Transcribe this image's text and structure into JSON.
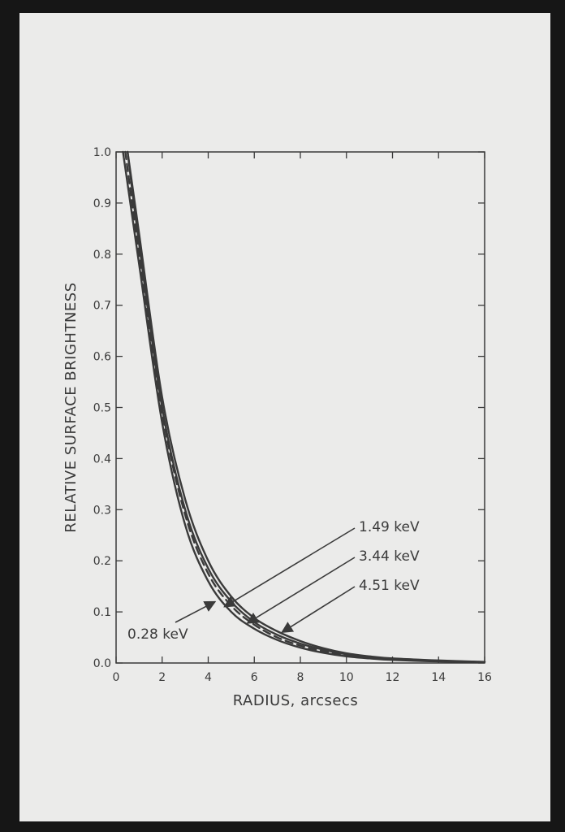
{
  "colors": {
    "background": "#ebebea",
    "ink": "#3a3a3a",
    "frame": "#161616"
  },
  "chart_data": {
    "type": "line",
    "title": "",
    "xlabel": "RADIUS, arcsecs",
    "ylabel": "RELATIVE SURFACE BRIGHTNESS",
    "xlim": [
      0,
      16
    ],
    "ylim": [
      0,
      1.0
    ],
    "xticks": [
      "0",
      "2",
      "4",
      "6",
      "8",
      "10",
      "12",
      "14",
      "16"
    ],
    "yticks": [
      "0.0",
      "0.1",
      "0.2",
      "0.3",
      "0.4",
      "0.5",
      "0.6",
      "0.7",
      "0.8",
      "0.9",
      "1.0"
    ],
    "grid": false,
    "series": [
      {
        "name": "0.28 keV",
        "dashed": false,
        "x": [
          0.3,
          1,
          2,
          3,
          4,
          5,
          6,
          7,
          8,
          9,
          10,
          11,
          12,
          14,
          16
        ],
        "y": [
          1.0,
          0.78,
          0.47,
          0.27,
          0.16,
          0.1,
          0.067,
          0.045,
          0.03,
          0.02,
          0.013,
          0.009,
          0.006,
          0.003,
          0.002
        ]
      },
      {
        "name": "1.49 keV",
        "dashed": true,
        "x": [
          0.4,
          1,
          2,
          3,
          4,
          5,
          6,
          7,
          8,
          9,
          10,
          11,
          12,
          14,
          16
        ],
        "y": [
          1.0,
          0.8,
          0.49,
          0.29,
          0.175,
          0.112,
          0.075,
          0.05,
          0.034,
          0.023,
          0.015,
          0.01,
          0.007,
          0.004,
          0.002
        ]
      },
      {
        "name": "3.44 keV",
        "dashed": false,
        "x": [
          0.5,
          1,
          2,
          3,
          4,
          5,
          6,
          7,
          8,
          9,
          10,
          11,
          12,
          14,
          16
        ],
        "y": [
          1.0,
          0.82,
          0.5,
          0.3,
          0.185,
          0.12,
          0.08,
          0.055,
          0.038,
          0.026,
          0.017,
          0.011,
          0.008,
          0.004,
          0.002
        ]
      },
      {
        "name": "4.51 keV",
        "dashed": false,
        "x": [
          0.5,
          1,
          2,
          3,
          4,
          5,
          6,
          7,
          8,
          9,
          10,
          11,
          12,
          14,
          16
        ],
        "y": [
          1.0,
          0.84,
          0.52,
          0.32,
          0.2,
          0.13,
          0.088,
          0.062,
          0.043,
          0.029,
          0.019,
          0.013,
          0.009,
          0.005,
          0.002
        ]
      }
    ],
    "annotations": [
      {
        "text": "1.49 keV",
        "series": "1.49 keV",
        "x": 4.7,
        "y": 0.11
      },
      {
        "text": "3.44 keV",
        "series": "3.44 keV",
        "x": 5.7,
        "y": 0.078
      },
      {
        "text": "4.51 keV",
        "series": "4.51 keV",
        "x": 7.2,
        "y": 0.06
      },
      {
        "text": "0.28 keV",
        "series": "0.28 keV",
        "x": 4.3,
        "y": 0.12
      }
    ]
  }
}
